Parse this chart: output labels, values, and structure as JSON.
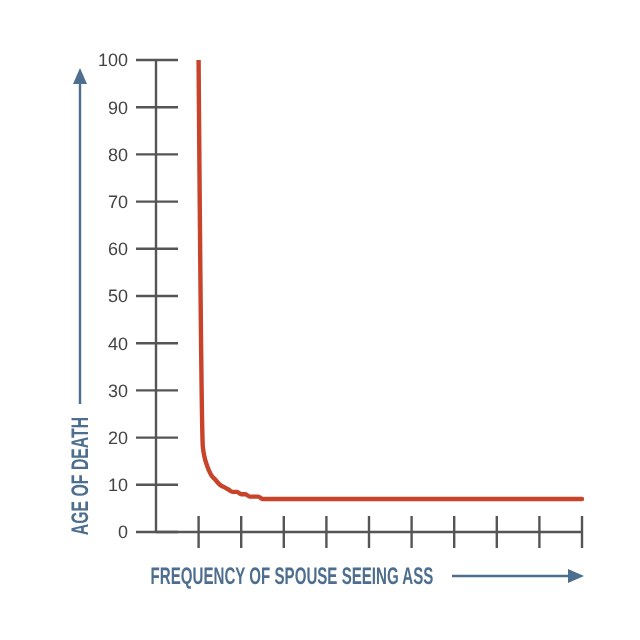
{
  "chart_data": {
    "type": "line",
    "xlabel": "FREQUENCY OF SPOUSE SEEING ASS",
    "ylabel": "AGE OF DEATH",
    "categories": [
      null,
      null,
      null,
      null,
      null,
      null,
      null,
      null,
      null,
      null,
      null,
      null,
      null,
      null,
      null,
      null,
      null,
      null,
      null,
      null,
      null,
      null,
      null,
      null,
      null,
      null,
      null,
      null,
      null,
      null,
      null,
      null,
      null,
      null,
      null,
      null,
      null,
      null,
      null,
      null,
      null,
      null,
      null,
      null,
      null,
      null,
      null,
      null,
      null,
      null,
      null,
      null,
      null,
      null,
      null,
      null,
      null,
      null,
      null,
      null,
      null,
      null,
      null,
      null,
      null,
      null,
      null,
      null,
      null,
      null,
      null,
      null,
      null,
      null,
      null,
      null,
      null,
      null,
      null,
      null,
      null,
      null,
      null,
      null,
      null,
      null,
      null,
      null,
      null,
      null,
      null
    ],
    "values": [
      100,
      18,
      14,
      12,
      11,
      10,
      9.5,
      9,
      8.5,
      8.5,
      8,
      8,
      7.5,
      7.5,
      7.5,
      7,
      7,
      7,
      7,
      7,
      7,
      7,
      7,
      7,
      7,
      7,
      7,
      7,
      7,
      7,
      7,
      7,
      7,
      7,
      7,
      7,
      7,
      7,
      7,
      7,
      7,
      7,
      7,
      7,
      7,
      7,
      7,
      7,
      7,
      7,
      7,
      7,
      7,
      7,
      7,
      7,
      7,
      7,
      7,
      7,
      7,
      7,
      7,
      7,
      7,
      7,
      7,
      7,
      7,
      7,
      7,
      7,
      7,
      7,
      7,
      7,
      7,
      7,
      7,
      7,
      7,
      7,
      7,
      7,
      7,
      7,
      7,
      7,
      7,
      7,
      7
    ],
    "color": "#c8432a",
    "ylim": [
      0,
      100
    ],
    "yticks": [
      0,
      10,
      20,
      30,
      40,
      50,
      60,
      70,
      80,
      90,
      100
    ],
    "tick_labels": "y"
  }
}
